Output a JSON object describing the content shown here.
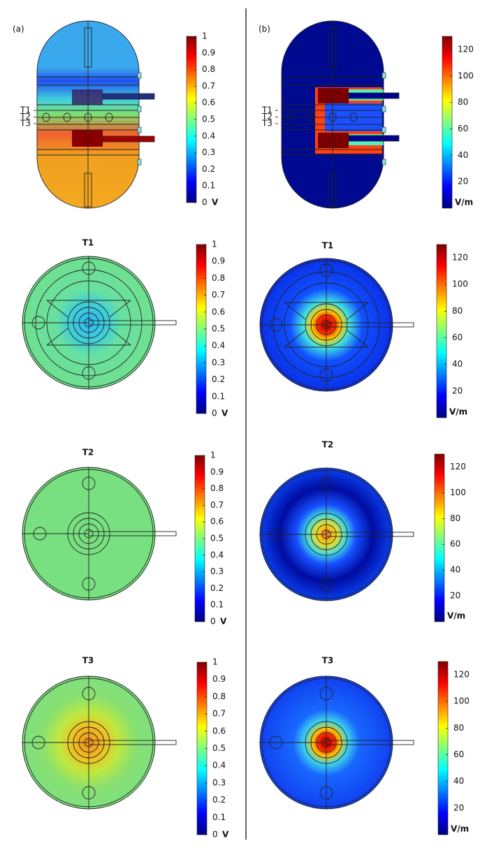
{
  "panels": [
    {
      "label": "(a)",
      "overview_labels": [
        "T1 -",
        "T2 -",
        "T3 -"
      ],
      "sections": [
        "T1",
        "T2",
        "T3"
      ],
      "colorbar": {
        "range": [
          0,
          1
        ],
        "ticks": [
          0,
          0.1,
          0.2,
          0.3,
          0.4,
          0.5,
          0.6,
          0.7,
          0.8,
          0.9,
          1
        ],
        "unit": "V"
      }
    },
    {
      "label": "(b)",
      "overview_labels": [
        "T1 -",
        "T2 -",
        "T3 -"
      ],
      "sections": [
        "T1",
        "T2",
        "T3"
      ],
      "colorbar": {
        "range": [
          0,
          130
        ],
        "ticks": [
          20,
          40,
          60,
          80,
          100,
          120
        ],
        "unit": "V/m"
      }
    }
  ]
}
